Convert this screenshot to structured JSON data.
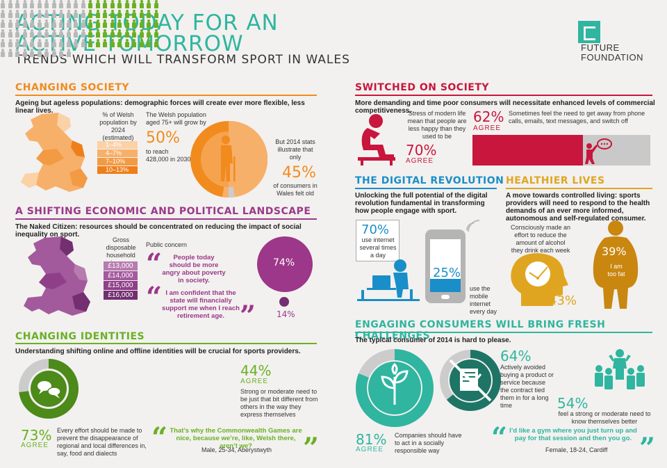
{
  "header": {
    "title_line1": "ACTING TODAY FOR AN",
    "title_line2": "ACTIVE TOMORROW",
    "subtitle": "TRENDS WHICH WILL TRANSFORM SPORT IN WALES",
    "logo_line1": "FUTURE",
    "logo_line2": "FOUNDATION"
  },
  "changing_society": {
    "title": "CHANGING SOCIETY",
    "subtitle": "Ageing but ageless populations: demographic forces will create ever more flexible, less linear lives.",
    "legend_label": "% of Welsh population by 2024 (estimated)",
    "legend": [
      "1–4%",
      "4–7%",
      "7–10%",
      "10–13%"
    ],
    "legend_colors": [
      "#fbd1a6",
      "#f7b06a",
      "#f39a44",
      "#ee7f1a"
    ],
    "stat_intro": "The Welsh population aged 75+ will grow by",
    "stat_value": "50%",
    "stat_outro": "to reach 428,000 in 2030",
    "right_text": "But 2014 stats illustrate that only",
    "right_value": "45%",
    "right_outro": "of consumers in Wales felt old"
  },
  "shifting_landscape": {
    "title": "A SHIFTING ECONOMIC AND POLITICAL LANDSCAPE",
    "subtitle": "The Naked Citizen: resources should be concentrated on reducing the impact of social inequality on sport.",
    "income_label": "Gross disposable household income",
    "income_bands": [
      "£13,000",
      "£14,000",
      "£15,000",
      "£16,000"
    ],
    "income_colors": [
      "#b77bb0",
      "#a35a9c",
      "#8e3f88",
      "#742f70"
    ],
    "concern_label": "Public concern",
    "quote1": "People today should be more angry about poverty in society.",
    "quote2": "I am confident that the state will financially support me when I reach retirement age.",
    "value1": "74%",
    "value2": "14%"
  },
  "changing_identities": {
    "title": "CHANGING IDENTITIES",
    "subtitle": "Understanding shifting online and offline identities will be crucial for sports providers.",
    "ring_value": "73%",
    "ring_agree": "AGREE",
    "ring_text": "Every effort should be made to prevent the disappearance of regional and local differences in, say, food and dialects",
    "people_value": "44%",
    "people_agree": "AGREE",
    "people_text": "Strong or moderate need to be just that bit different from others in the way they express themselves",
    "quote": "That’s why the Commonwealth Games are nice, because we’re, like, Welsh there, aren’t we?",
    "quote_attribution": "Male, 25-34, Aberystwyth",
    "people_total": 120,
    "people_highlight_fraction": 0.44
  },
  "switched_on": {
    "title": "SWITCHED ON SOCIETY",
    "subtitle": "More demanding and time poor consumers will necessitate enhanced levels of commercial competitiveness.",
    "stress_text": "Stress of modern life mean that people are less happy than they used to be",
    "stress_value": "70%",
    "stress_agree": "AGREE",
    "switch_value": "62%",
    "switch_agree": "AGREE",
    "switch_text": "Sometimes feel the need to get away from phone calls, emails, text messages, and switch off",
    "switch_fraction": 0.62
  },
  "digital_revolution": {
    "title": "THE DIGITAL REVOLUTION",
    "subtitle": "Unlocking the full potential of the digital revolution fundamental in transforming how people engage with sport.",
    "internet_value": "70%",
    "internet_text": "use internet several times a day",
    "mobile_value": "25%",
    "mobile_text": "use the mobile internet every day"
  },
  "healthier_lives": {
    "title": "HEALTHIER LIVES",
    "subtitle": "A move towards controlled living: sports providers will need to respond to the health demands of an ever more informed, autonomous and self-regulated consumer.",
    "alcohol_text": "Consciously made an effort to reduce the amount of alcohol they drink each week",
    "alcohol_value": "43%",
    "fat_value": "39%",
    "fat_text": "I am too fat"
  },
  "engaging": {
    "title": "ENGAGING CONSUMERS WILL BRING FRESH CHALLENGES",
    "subtitle": "The typical consumer of 2014 is hard to please.",
    "social_value": "81%",
    "social_agree": "AGREE",
    "social_text": "Companies should have to act in a socially responsible way",
    "avoid_value": "64%",
    "avoid_text": "Actively avoided buying a product or service because the contract tied them in for a long time",
    "need_value": "54%",
    "need_text": "feel a strong or moderate need to know themselves better",
    "quote": "I’d like a gym where you just turn up and pay for that session and then you go.",
    "quote_attribution": "Female, 18-24, Cardiff"
  },
  "colors": {
    "teal": "#2fb5a0",
    "orange": "#f18b1e",
    "purple": "#9c3789",
    "green": "#6ab023",
    "red": "#c8163c",
    "blue": "#1a8ec8",
    "mustard": "#e0a520"
  }
}
